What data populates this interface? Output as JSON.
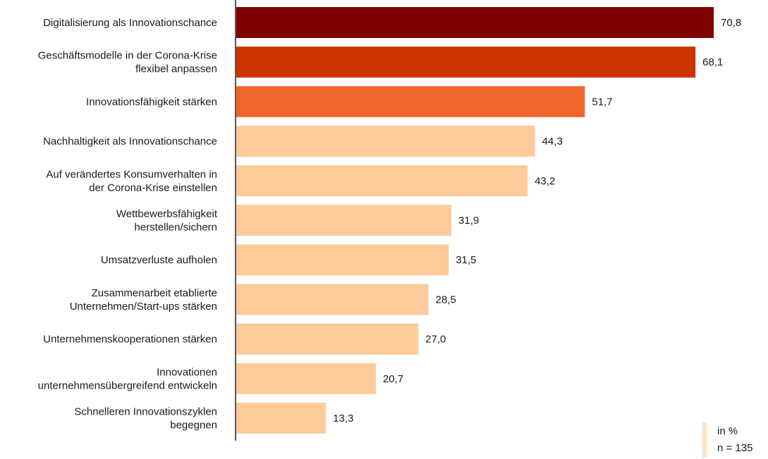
{
  "chart_data": {
    "type": "bar",
    "orientation": "horizontal",
    "categories": [
      "Digitalisierung als Innovationschance",
      "Geschäftsmodelle in der Corona-Krise flexibel anpassen",
      "Innovationsfähigkeit stärken",
      "Nachhaltigkeit als Innovationschance",
      "Auf verändertes Konsumverhalten in der Corona-Krise einstellen",
      "Wettbewerbsfähigkeit herstellen/sichern",
      "Umsatzverluste aufholen",
      "Zusammenarbeit etablierte Unternehmen/Start-ups stärken",
      "Unternehmenskooperationen stärken",
      "Innovationen unternehmensübergreifend entwickeln",
      "Schnelleren Innovationszyklen begegnen"
    ],
    "category_lines": [
      [
        "Digitalisierung als Innovationschance"
      ],
      [
        "Geschäftsmodelle in der Corona-Krise",
        "flexibel anpassen"
      ],
      [
        "Innovationsfähigkeit stärken"
      ],
      [
        "Nachhaltigkeit als Innovationschance"
      ],
      [
        "Auf verändertes Konsumverhalten in",
        "der Corona-Krise einstellen"
      ],
      [
        "Wettbewerbsfähigkeit",
        "herstellen/sichern"
      ],
      [
        "Umsatzverluste aufholen"
      ],
      [
        "Zusammenarbeit etablierte",
        "Unternehmen/Start-ups stärken"
      ],
      [
        "Unternehmenskooperationen stärken"
      ],
      [
        "Innovationen",
        "unternehmensübergreifend entwickeln"
      ],
      [
        "Schnelleren Innovationszyklen",
        "begegnen"
      ]
    ],
    "values": [
      70.8,
      68.1,
      51.7,
      44.3,
      43.2,
      31.9,
      31.5,
      28.5,
      27.0,
      20.7,
      13.3
    ],
    "value_labels": [
      "70,8",
      "68,1",
      "51,7",
      "44,3",
      "43,2",
      "31,9",
      "31,5",
      "28,5",
      "27,0",
      "20,7",
      "13,3"
    ],
    "bar_colors": [
      "#7f0000",
      "#cc3300",
      "#f0652b",
      "#fdcb9a",
      "#fdcb9a",
      "#fdcb9a",
      "#fdcb9a",
      "#fdcb9a",
      "#fdcb9a",
      "#fdcb9a",
      "#fdcb9a"
    ],
    "xlim": [
      0,
      70.8
    ],
    "axis_color": "#000000",
    "grid": false,
    "legend": "none",
    "notes": {
      "unit": "in %",
      "sample": "n = 135",
      "marker_color": "#fde2c4"
    }
  }
}
